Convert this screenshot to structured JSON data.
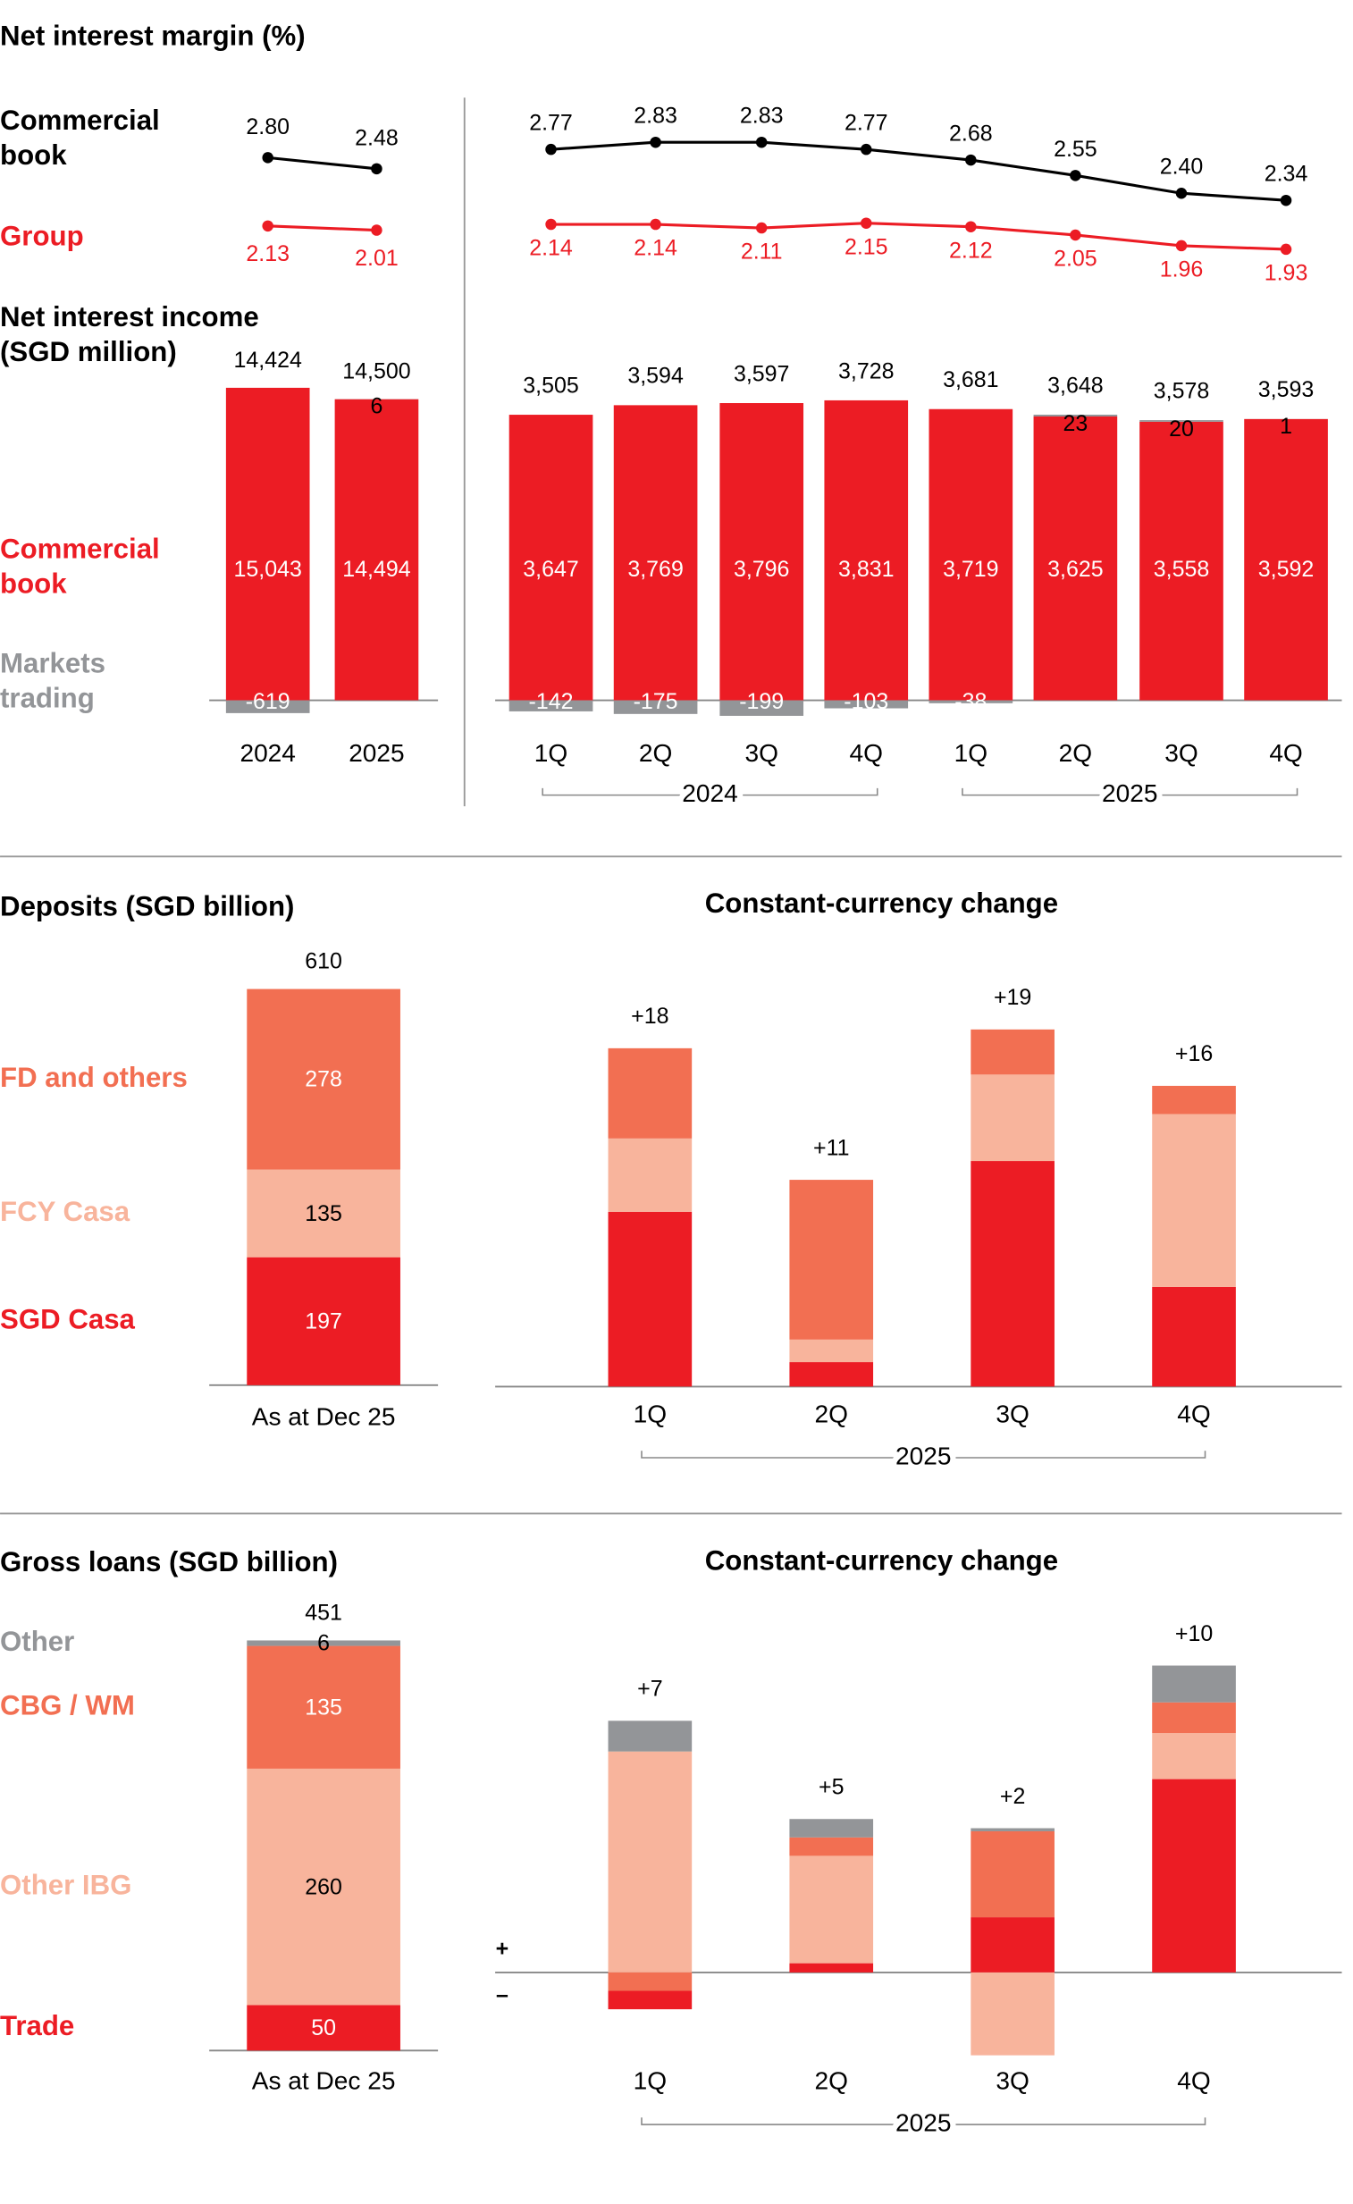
{
  "chart_data": [
    {
      "type": "line",
      "title": "Net interest margin (%)",
      "series": [
        {
          "name": "Commercial book",
          "color": "#000000",
          "values": [
            2.8,
            2.48
          ],
          "value_labels": [
            "2.80",
            "2.48"
          ]
        },
        {
          "name": "Group",
          "color": "#ec1c24",
          "values": [
            2.13,
            2.01
          ],
          "value_labels": [
            "2.13",
            "2.01"
          ]
        }
      ]
    },
    {
      "type": "line",
      "series": [
        {
          "color": "#000000",
          "values": [
            2.77,
            2.83,
            2.83,
            2.77,
            2.68,
            2.55,
            2.4,
            2.34
          ],
          "value_labels": [
            "2.77",
            "2.83",
            "2.83",
            "2.77",
            "2.68",
            "2.55",
            "2.40",
            "2.34"
          ]
        },
        {
          "color": "#ec1c24",
          "values": [
            2.14,
            2.14,
            2.11,
            2.15,
            2.12,
            2.05,
            1.96,
            1.93
          ],
          "value_labels": [
            "2.14",
            "2.14",
            "2.11",
            "2.15",
            "2.12",
            "2.05",
            "1.96",
            "1.93"
          ]
        }
      ]
    },
    {
      "type": "bar",
      "stacked": true,
      "title": "Net interest income (SGD million)",
      "categories": [
        "2024",
        "2025"
      ],
      "series": [
        {
          "name": "Commercial book",
          "color": "#ec1c24",
          "values": [
            15043,
            14494
          ],
          "value_labels": [
            "15,043",
            "14,494"
          ]
        },
        {
          "name": "Markets trading",
          "color": "#939598",
          "values": [
            -619,
            6
          ]
        }
      ],
      "totals": [
        14424,
        14500
      ],
      "total_labels": [
        "14,424",
        "14,500"
      ]
    },
    {
      "type": "bar",
      "stacked": true,
      "categories": [
        "1Q",
        "2Q",
        "3Q",
        "4Q",
        "1Q",
        "2Q",
        "3Q",
        "4Q"
      ],
      "groups": [
        "2024",
        "2025"
      ],
      "series": [
        {
          "color": "#ec1c24",
          "values": [
            3647,
            3769,
            3796,
            3831,
            3719,
            3625,
            3558,
            3592
          ],
          "value_labels": [
            "3,647",
            "3,769",
            "3,796",
            "3,831",
            "3,719",
            "3,625",
            "3,558",
            "3,592"
          ]
        },
        {
          "color": "#939598",
          "values": [
            -142,
            -175,
            -199,
            -103,
            -38,
            23,
            20,
            1
          ]
        }
      ],
      "totals": [
        3505,
        3594,
        3597,
        3728,
        3681,
        3648,
        3578,
        3593
      ],
      "total_labels": [
        "3,505",
        "3,594",
        "3,597",
        "3,728",
        "3,681",
        "3,648",
        "3,578",
        "3,593"
      ]
    },
    {
      "type": "bar",
      "stacked": true,
      "title": "Deposits (SGD billion)",
      "categories": [
        "As at Dec 25"
      ],
      "series": [
        {
          "name": "SGD Casa",
          "color": "#ec1c24",
          "values": [
            197
          ]
        },
        {
          "name": "FCY Casa",
          "color": "#f8b49c",
          "values": [
            135
          ]
        },
        {
          "name": "FD and others",
          "color": "#f26f52",
          "values": [
            278
          ]
        }
      ],
      "totals": [
        610
      ]
    },
    {
      "type": "bar",
      "stacked": true,
      "title": "Constant-currency change",
      "categories": [
        "1Q",
        "2Q",
        "3Q",
        "4Q"
      ],
      "groups": [
        "2025"
      ],
      "series": [
        {
          "color": "#ec1c24",
          "values": [
            9.3,
            1.3,
            12.0,
            5.3
          ]
        },
        {
          "color": "#f8b49c",
          "values": [
            3.9,
            1.2,
            4.6,
            9.2
          ]
        },
        {
          "color": "#f26f52",
          "values": [
            4.8,
            8.5,
            2.4,
            1.5
          ]
        }
      ],
      "totals": [
        18,
        11,
        19,
        16
      ],
      "total_labels": [
        "+18",
        "+11",
        "+19",
        "+16"
      ]
    },
    {
      "type": "bar",
      "stacked": true,
      "title": "Gross loans (SGD billion)",
      "categories": [
        "As at Dec 25"
      ],
      "series": [
        {
          "name": "Trade",
          "color": "#ec1c24",
          "values": [
            50
          ]
        },
        {
          "name": "Other IBG",
          "color": "#f8b49c",
          "values": [
            260
          ]
        },
        {
          "name": "CBG / WM",
          "color": "#f26f52",
          "values": [
            135
          ]
        },
        {
          "name": "Other",
          "color": "#939598",
          "values": [
            6
          ]
        }
      ],
      "totals": [
        451
      ]
    },
    {
      "type": "bar",
      "stacked": true,
      "title": "Constant-currency change",
      "categories": [
        "1Q",
        "2Q",
        "3Q",
        "4Q"
      ],
      "groups": [
        "2025"
      ],
      "series": [
        {
          "color": "#ec1c24",
          "values": [
            -0.6,
            0.3,
            1.8,
            6.3
          ]
        },
        {
          "color": "#f8b49c",
          "values": [
            7.2,
            3.5,
            -2.7,
            1.5
          ]
        },
        {
          "color": "#f26f52",
          "values": [
            -0.6,
            0.6,
            2.8,
            1.0
          ]
        },
        {
          "color": "#939598",
          "values": [
            1.0,
            0.6,
            0.1,
            1.2
          ]
        }
      ],
      "totals": [
        7,
        5,
        2,
        10
      ],
      "total_labels": [
        "+7",
        "+5",
        "+2",
        "+10"
      ],
      "axis_signs": [
        "+",
        "–"
      ]
    }
  ]
}
